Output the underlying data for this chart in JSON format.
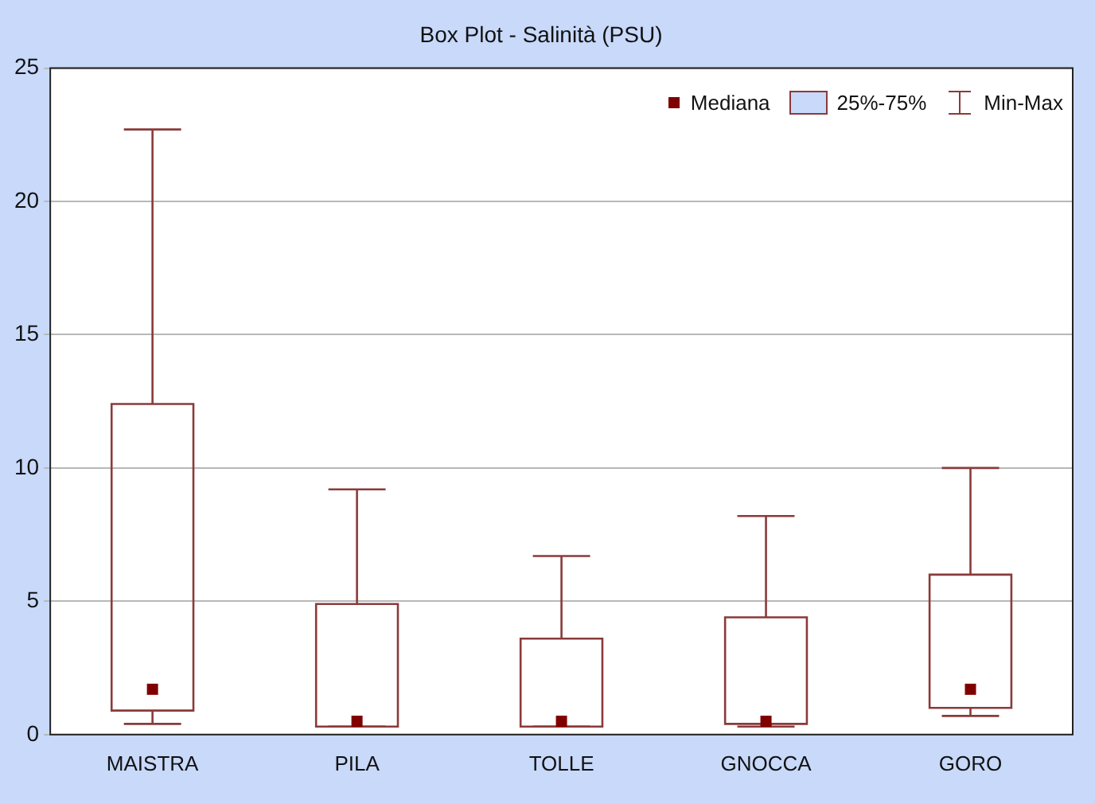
{
  "chart_data": {
    "type": "box",
    "title": "Box Plot - Salinità (PSU)",
    "categories": [
      "MAISTRA",
      "PILA",
      "TOLLE",
      "GNOCCA",
      "GORO"
    ],
    "series": [
      {
        "color": "#8b3a3a",
        "boxes": [
          {
            "low": 0.4,
            "q1": 0.9,
            "median": 1.7,
            "q3": 12.4,
            "high": 22.7
          },
          {
            "low": 0.3,
            "q1": 0.3,
            "median": 0.5,
            "q3": 4.9,
            "high": 9.2
          },
          {
            "low": 0.3,
            "q1": 0.3,
            "median": 0.5,
            "q3": 3.6,
            "high": 6.7
          },
          {
            "low": 0.3,
            "q1": 0.4,
            "median": 0.5,
            "q3": 4.4,
            "high": 8.2
          },
          {
            "low": 0.7,
            "q1": 1.0,
            "median": 1.7,
            "q3": 6.0,
            "high": 10.0
          }
        ]
      }
    ],
    "annotations": [
      "Mediana",
      "25%-75%",
      "Min-Max"
    ],
    "ylim": [
      0,
      25
    ],
    "yticks": [
      0,
      5,
      10,
      15,
      20,
      25
    ],
    "grid": "y",
    "marker": "square"
  }
}
